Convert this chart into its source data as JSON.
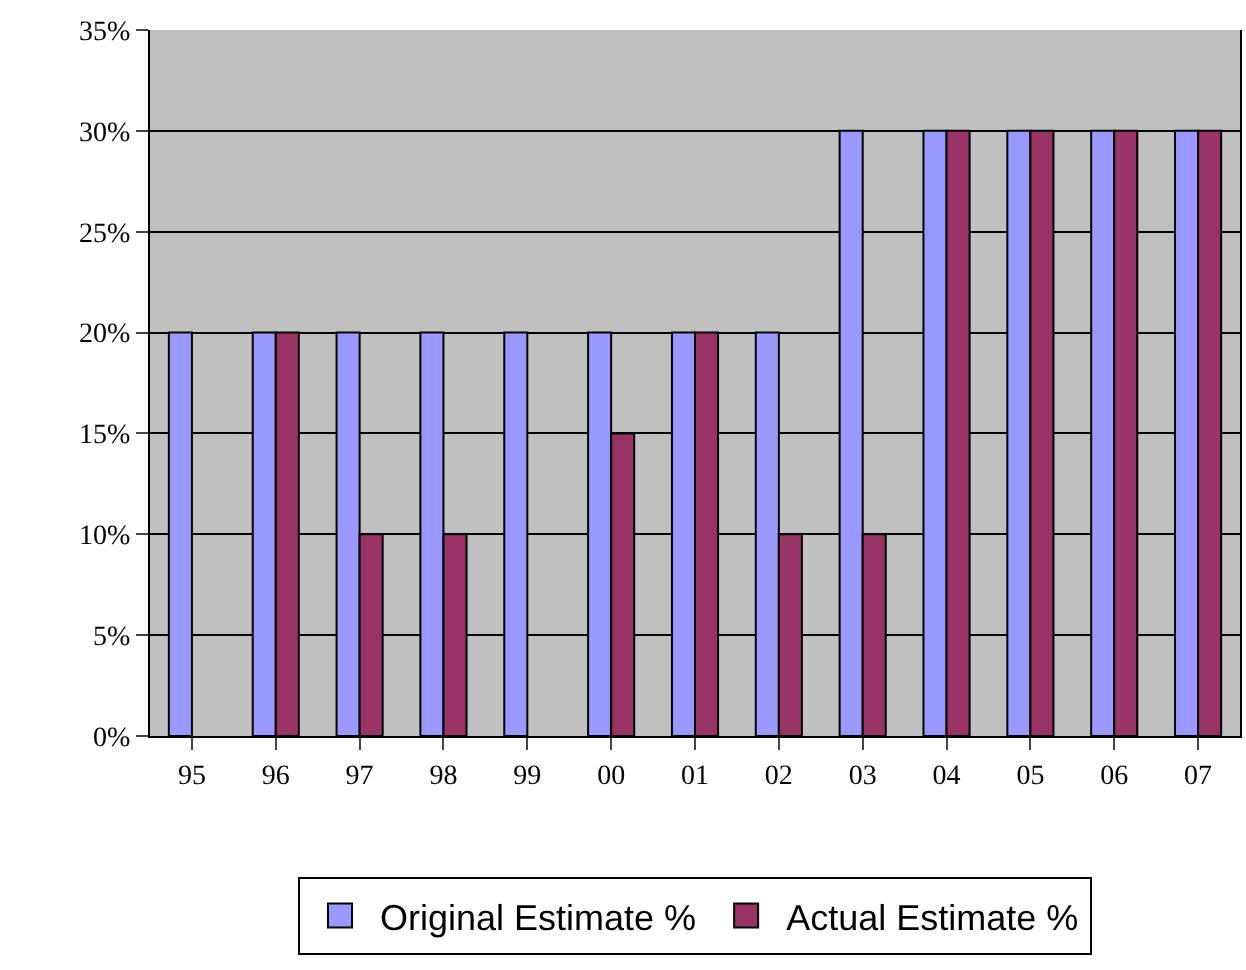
{
  "chart_data": {
    "type": "bar",
    "categories": [
      "95",
      "96",
      "97",
      "98",
      "99",
      "00",
      "01",
      "02",
      "03",
      "04",
      "05",
      "06",
      "07"
    ],
    "series": [
      {
        "name": "Original Estimate %",
        "color": "#9999ff",
        "values": [
          20,
          20,
          20,
          20,
          20,
          20,
          20,
          20,
          30,
          30,
          30,
          30,
          30
        ]
      },
      {
        "name": "Actual Estimate %",
        "color": "#993366",
        "values": [
          null,
          20,
          10,
          10,
          null,
          15,
          20,
          10,
          10,
          30,
          30,
          30,
          30
        ]
      }
    ],
    "ylim": [
      0,
      35
    ],
    "yticks": [
      {
        "value": 0,
        "label": "0%"
      },
      {
        "value": 5,
        "label": "5%"
      },
      {
        "value": 10,
        "label": "10%"
      },
      {
        "value": 15,
        "label": "15%"
      },
      {
        "value": 20,
        "label": "20%"
      },
      {
        "value": 25,
        "label": "25%"
      },
      {
        "value": 30,
        "label": "30%"
      },
      {
        "value": 35,
        "label": "35%"
      }
    ],
    "grid": "y",
    "legend": "bottom"
  }
}
